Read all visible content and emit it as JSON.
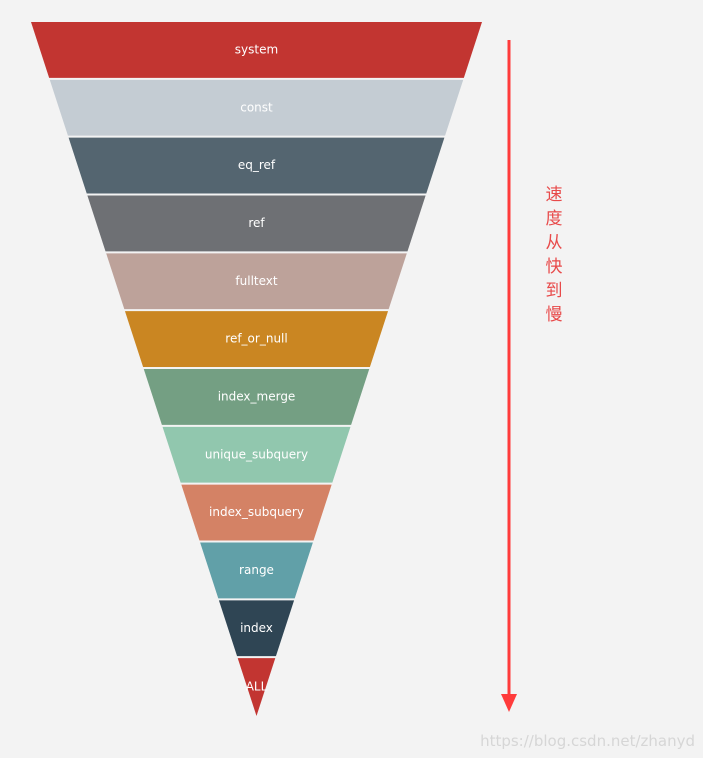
{
  "funnel": {
    "levels": [
      {
        "label": "system",
        "color": "#c23531"
      },
      {
        "label": "const",
        "color": "#c4ccd3"
      },
      {
        "label": "eq_ref",
        "color": "#546570"
      },
      {
        "label": "ref",
        "color": "#6e7074"
      },
      {
        "label": "fulltext",
        "color": "#bda29a"
      },
      {
        "label": "ref_or_null",
        "color": "#ca8622"
      },
      {
        "label": "index_merge",
        "color": "#749f83"
      },
      {
        "label": "unique_subquery",
        "color": "#91c7ae"
      },
      {
        "label": "index_subquery",
        "color": "#d48265"
      },
      {
        "label": "range",
        "color": "#61a0a8"
      },
      {
        "label": "index",
        "color": "#2f4554"
      },
      {
        "label": "ALL",
        "color": "#c23531"
      }
    ]
  },
  "annotation": {
    "speed_text": "速度从快到慢",
    "arrow_color": "#ff3b3b"
  },
  "watermark": "https://blog.csdn.net/zhanyd"
}
